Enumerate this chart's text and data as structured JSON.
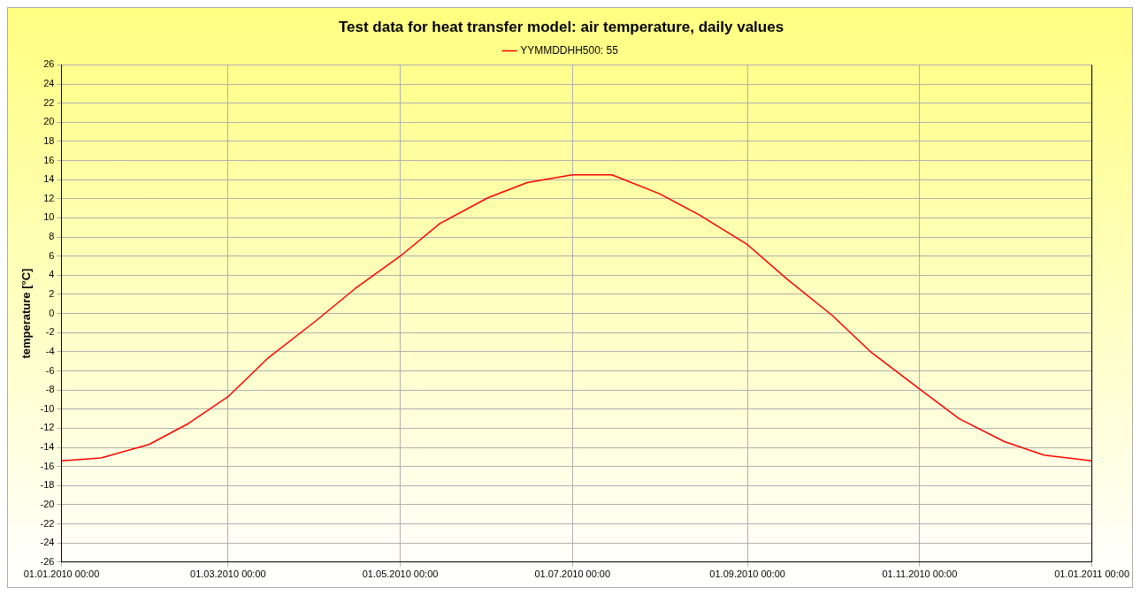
{
  "chart_data": {
    "type": "line",
    "title": "Test data for heat transfer model: air temperature, daily values",
    "ylabel": "temperature [°C]",
    "x": [
      "2010-01-01",
      "2010-01-15",
      "2010-02-01",
      "2010-02-15",
      "2010-03-01",
      "2010-03-15",
      "2010-04-01",
      "2010-04-15",
      "2010-05-01",
      "2010-05-15",
      "2010-06-01",
      "2010-06-15",
      "2010-07-01",
      "2010-07-15",
      "2010-08-01",
      "2010-08-15",
      "2010-09-01",
      "2010-09-15",
      "2010-10-01",
      "2010-10-15",
      "2010-11-01",
      "2010-11-15",
      "2010-12-01",
      "2010-12-15",
      "2011-01-01"
    ],
    "series": [
      {
        "name": "YYMMDDHH500: 55",
        "color": "#ff0000",
        "values": [
          -15.4,
          -15.1,
          -13.7,
          -11.5,
          -8.7,
          -4.7,
          -0.8,
          2.6,
          6.0,
          9.4,
          12.1,
          13.7,
          14.5,
          14.5,
          12.5,
          10.3,
          7.2,
          3.6,
          -0.2,
          -4.1,
          -7.9,
          -11.0,
          -13.4,
          -14.8,
          -15.4
        ]
      }
    ],
    "xlim": [
      "2010-01-01",
      "2011-01-01"
    ],
    "xticks": [
      {
        "value": "2010-01-01",
        "label": "01.01.2010 00:00"
      },
      {
        "value": "2010-03-01",
        "label": "01.03.2010 00:00"
      },
      {
        "value": "2010-05-01",
        "label": "01.05.2010 00:00"
      },
      {
        "value": "2010-07-01",
        "label": "01.07.2010 00:00"
      },
      {
        "value": "2010-09-01",
        "label": "01.09.2010 00:00"
      },
      {
        "value": "2010-11-01",
        "label": "01.11.2010 00:00"
      },
      {
        "value": "2011-01-01",
        "label": "01.01.2011 00:00"
      }
    ],
    "ylim": [
      -26,
      26
    ],
    "yticks": [
      -26,
      -24,
      -22,
      -20,
      -18,
      -16,
      -14,
      -12,
      -10,
      -8,
      -6,
      -4,
      -2,
      0,
      2,
      4,
      6,
      8,
      10,
      12,
      14,
      16,
      18,
      20,
      22,
      24,
      26
    ],
    "grid": true,
    "legend": "top",
    "marker": "none",
    "line_style": "solid"
  }
}
